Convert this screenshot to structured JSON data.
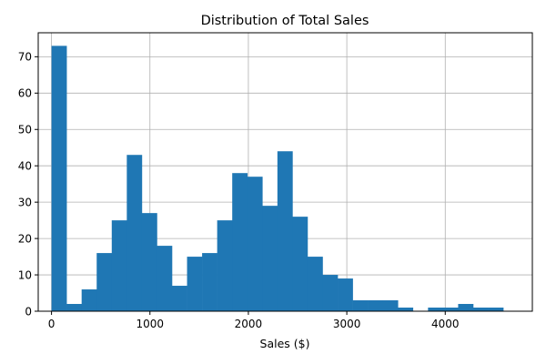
{
  "chart_data": {
    "type": "bar",
    "subtype": "histogram",
    "title": "Distribution of Total Sales",
    "xlabel": "Sales ($)",
    "ylabel": "",
    "xlim": [
      -135,
      4885
    ],
    "ylim": [
      0,
      76.6
    ],
    "x_ticks": [
      0,
      1000,
      2000,
      3000,
      4000
    ],
    "y_ticks": [
      0,
      10,
      20,
      30,
      40,
      50,
      60,
      70
    ],
    "grid": true,
    "legend": "none",
    "bar_color": "#1f77b4",
    "bins": [
      {
        "x0": 0,
        "x1": 153,
        "count": 73
      },
      {
        "x0": 153,
        "x1": 306,
        "count": 2
      },
      {
        "x0": 306,
        "x1": 459,
        "count": 6
      },
      {
        "x0": 459,
        "x1": 612,
        "count": 16
      },
      {
        "x0": 612,
        "x1": 765,
        "count": 25
      },
      {
        "x0": 765,
        "x1": 918,
        "count": 43
      },
      {
        "x0": 918,
        "x1": 1071,
        "count": 27
      },
      {
        "x0": 1071,
        "x1": 1224,
        "count": 18
      },
      {
        "x0": 1224,
        "x1": 1377,
        "count": 7
      },
      {
        "x0": 1377,
        "x1": 1530,
        "count": 15
      },
      {
        "x0": 1530,
        "x1": 1683,
        "count": 16
      },
      {
        "x0": 1683,
        "x1": 1836,
        "count": 25
      },
      {
        "x0": 1836,
        "x1": 1989,
        "count": 38
      },
      {
        "x0": 1989,
        "x1": 2142,
        "count": 37
      },
      {
        "x0": 2142,
        "x1": 2295,
        "count": 29
      },
      {
        "x0": 2295,
        "x1": 2448,
        "count": 44
      },
      {
        "x0": 2448,
        "x1": 2601,
        "count": 26
      },
      {
        "x0": 2601,
        "x1": 2754,
        "count": 15
      },
      {
        "x0": 2754,
        "x1": 2907,
        "count": 10
      },
      {
        "x0": 2907,
        "x1": 3060,
        "count": 9
      },
      {
        "x0": 3060,
        "x1": 3213,
        "count": 3
      },
      {
        "x0": 3213,
        "x1": 3366,
        "count": 3
      },
      {
        "x0": 3366,
        "x1": 3519,
        "count": 3
      },
      {
        "x0": 3519,
        "x1": 3672,
        "count": 1
      },
      {
        "x0": 3672,
        "x1": 3825,
        "count": 0
      },
      {
        "x0": 3825,
        "x1": 3978,
        "count": 1
      },
      {
        "x0": 3978,
        "x1": 4131,
        "count": 1
      },
      {
        "x0": 4131,
        "x1": 4284,
        "count": 2
      },
      {
        "x0": 4284,
        "x1": 4437,
        "count": 1
      },
      {
        "x0": 4437,
        "x1": 4590,
        "count": 1
      }
    ]
  }
}
